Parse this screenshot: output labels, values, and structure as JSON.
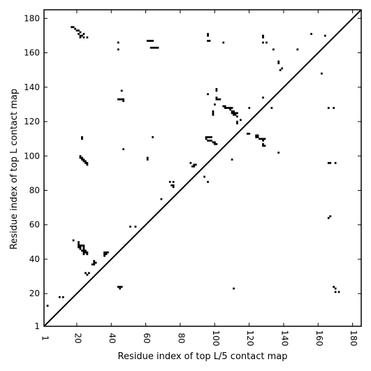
{
  "chart_data": {
    "type": "scatter",
    "title": "",
    "xlabel": "Residue index of top L/5 contact map",
    "ylabel": "Residue index of top L contact map",
    "xlim": [
      1,
      185
    ],
    "ylim": [
      1,
      185
    ],
    "xticks": [
      1,
      20,
      40,
      60,
      80,
      100,
      120,
      140,
      160,
      180
    ],
    "yticks": [
      1,
      20,
      40,
      60,
      80,
      100,
      120,
      140,
      160,
      180
    ],
    "grid": false,
    "diagonal": [
      [
        1,
        1
      ],
      [
        185,
        185
      ]
    ],
    "cells": [
      [
        17,
        175
      ],
      [
        18,
        175
      ],
      [
        19,
        174
      ],
      [
        20,
        173
      ],
      [
        21,
        173
      ],
      [
        22,
        172
      ],
      [
        21,
        171
      ],
      [
        22,
        170
      ],
      [
        23,
        170
      ],
      [
        24,
        171
      ],
      [
        26,
        169
      ],
      [
        22,
        169
      ],
      [
        24,
        169
      ],
      [
        44,
        166
      ],
      [
        44,
        162
      ],
      [
        61,
        167
      ],
      [
        62,
        167
      ],
      [
        63,
        167
      ],
      [
        64,
        167
      ],
      [
        63,
        163
      ],
      [
        64,
        163
      ],
      [
        65,
        163
      ],
      [
        66,
        163
      ],
      [
        67,
        163
      ],
      [
        96,
        171
      ],
      [
        96,
        170
      ],
      [
        96,
        167
      ],
      [
        97,
        167
      ],
      [
        105,
        166
      ],
      [
        128,
        170
      ],
      [
        128,
        169
      ],
      [
        128,
        166
      ],
      [
        130,
        166
      ],
      [
        134,
        162
      ],
      [
        148,
        162
      ],
      [
        156,
        171
      ],
      [
        164,
        170
      ],
      [
        137,
        155
      ],
      [
        137,
        154
      ],
      [
        139,
        151
      ],
      [
        138,
        150
      ],
      [
        162,
        148
      ],
      [
        44,
        133
      ],
      [
        45,
        133
      ],
      [
        46,
        133
      ],
      [
        47,
        133
      ],
      [
        47,
        132
      ],
      [
        46,
        138
      ],
      [
        96,
        136
      ],
      [
        101,
        139
      ],
      [
        101,
        138
      ],
      [
        101,
        134
      ],
      [
        101,
        133
      ],
      [
        102,
        133
      ],
      [
        103,
        133
      ],
      [
        100,
        130
      ],
      [
        105,
        129
      ],
      [
        106,
        129
      ],
      [
        106,
        128
      ],
      [
        107,
        128
      ],
      [
        108,
        128
      ],
      [
        109,
        128
      ],
      [
        110,
        128
      ],
      [
        109,
        127
      ],
      [
        110,
        126
      ],
      [
        111,
        126
      ],
      [
        110,
        125
      ],
      [
        111,
        125
      ],
      [
        112,
        125
      ],
      [
        113,
        125
      ],
      [
        111,
        124
      ],
      [
        112,
        124
      ],
      [
        113,
        123
      ],
      [
        113,
        120
      ],
      [
        113,
        119
      ],
      [
        115,
        121
      ],
      [
        99,
        126
      ],
      [
        99,
        125
      ],
      [
        99,
        124
      ],
      [
        120,
        128
      ],
      [
        128,
        134
      ],
      [
        133,
        128
      ],
      [
        166,
        128
      ],
      [
        169,
        128
      ],
      [
        119,
        113
      ],
      [
        120,
        113
      ],
      [
        124,
        112
      ],
      [
        125,
        112
      ],
      [
        124,
        111
      ],
      [
        125,
        111
      ],
      [
        126,
        110
      ],
      [
        127,
        110
      ],
      [
        128,
        110
      ],
      [
        129,
        110
      ],
      [
        128,
        109
      ],
      [
        128,
        107
      ],
      [
        129,
        106
      ],
      [
        128,
        106
      ],
      [
        137,
        102
      ],
      [
        95,
        111
      ],
      [
        96,
        111
      ],
      [
        97,
        111
      ],
      [
        98,
        111
      ],
      [
        95,
        110
      ],
      [
        96,
        109
      ],
      [
        97,
        109
      ],
      [
        98,
        109
      ],
      [
        99,
        108
      ],
      [
        100,
        108
      ],
      [
        100,
        107
      ],
      [
        101,
        107
      ],
      [
        110,
        98
      ],
      [
        23,
        111
      ],
      [
        23,
        110
      ],
      [
        22,
        100
      ],
      [
        22,
        99
      ],
      [
        23,
        99
      ],
      [
        23,
        98
      ],
      [
        24,
        98
      ],
      [
        24,
        97
      ],
      [
        25,
        97
      ],
      [
        25,
        96
      ],
      [
        26,
        96
      ],
      [
        26,
        95
      ],
      [
        47,
        104
      ],
      [
        61,
        99
      ],
      [
        61,
        98
      ],
      [
        64,
        111
      ],
      [
        86,
        96
      ],
      [
        88,
        95
      ],
      [
        87,
        94
      ],
      [
        88,
        94
      ],
      [
        89,
        95
      ],
      [
        94,
        88
      ],
      [
        96,
        85
      ],
      [
        74,
        85
      ],
      [
        76,
        85
      ],
      [
        75,
        83
      ],
      [
        76,
        83
      ],
      [
        76,
        82
      ],
      [
        69,
        75
      ],
      [
        166,
        96
      ],
      [
        167,
        96
      ],
      [
        170,
        96
      ],
      [
        166,
        64
      ],
      [
        167,
        65
      ],
      [
        18,
        51
      ],
      [
        21,
        50
      ],
      [
        21,
        49
      ],
      [
        21,
        48
      ],
      [
        22,
        48
      ],
      [
        23,
        48
      ],
      [
        24,
        48
      ],
      [
        21,
        47
      ],
      [
        22,
        47
      ],
      [
        24,
        47
      ],
      [
        22,
        46
      ],
      [
        24,
        46
      ],
      [
        23,
        45
      ],
      [
        24,
        45
      ],
      [
        25,
        45
      ],
      [
        24,
        44
      ],
      [
        25,
        44
      ],
      [
        26,
        44
      ],
      [
        24,
        43
      ],
      [
        26,
        43
      ],
      [
        36,
        44
      ],
      [
        37,
        44
      ],
      [
        38,
        44
      ],
      [
        36,
        43
      ],
      [
        36,
        42
      ],
      [
        37,
        43
      ],
      [
        30,
        39
      ],
      [
        30,
        38
      ],
      [
        31,
        38
      ],
      [
        30,
        37
      ],
      [
        29,
        37
      ],
      [
        25,
        32
      ],
      [
        26,
        31
      ],
      [
        27,
        32
      ],
      [
        44,
        24
      ],
      [
        45,
        24
      ],
      [
        46,
        24
      ],
      [
        45,
        23
      ],
      [
        51,
        59
      ],
      [
        54,
        59
      ],
      [
        10,
        18
      ],
      [
        12,
        18
      ],
      [
        3,
        13
      ],
      [
        111,
        23
      ],
      [
        169,
        24
      ],
      [
        170,
        23
      ],
      [
        170,
        21
      ],
      [
        172,
        21
      ]
    ]
  }
}
